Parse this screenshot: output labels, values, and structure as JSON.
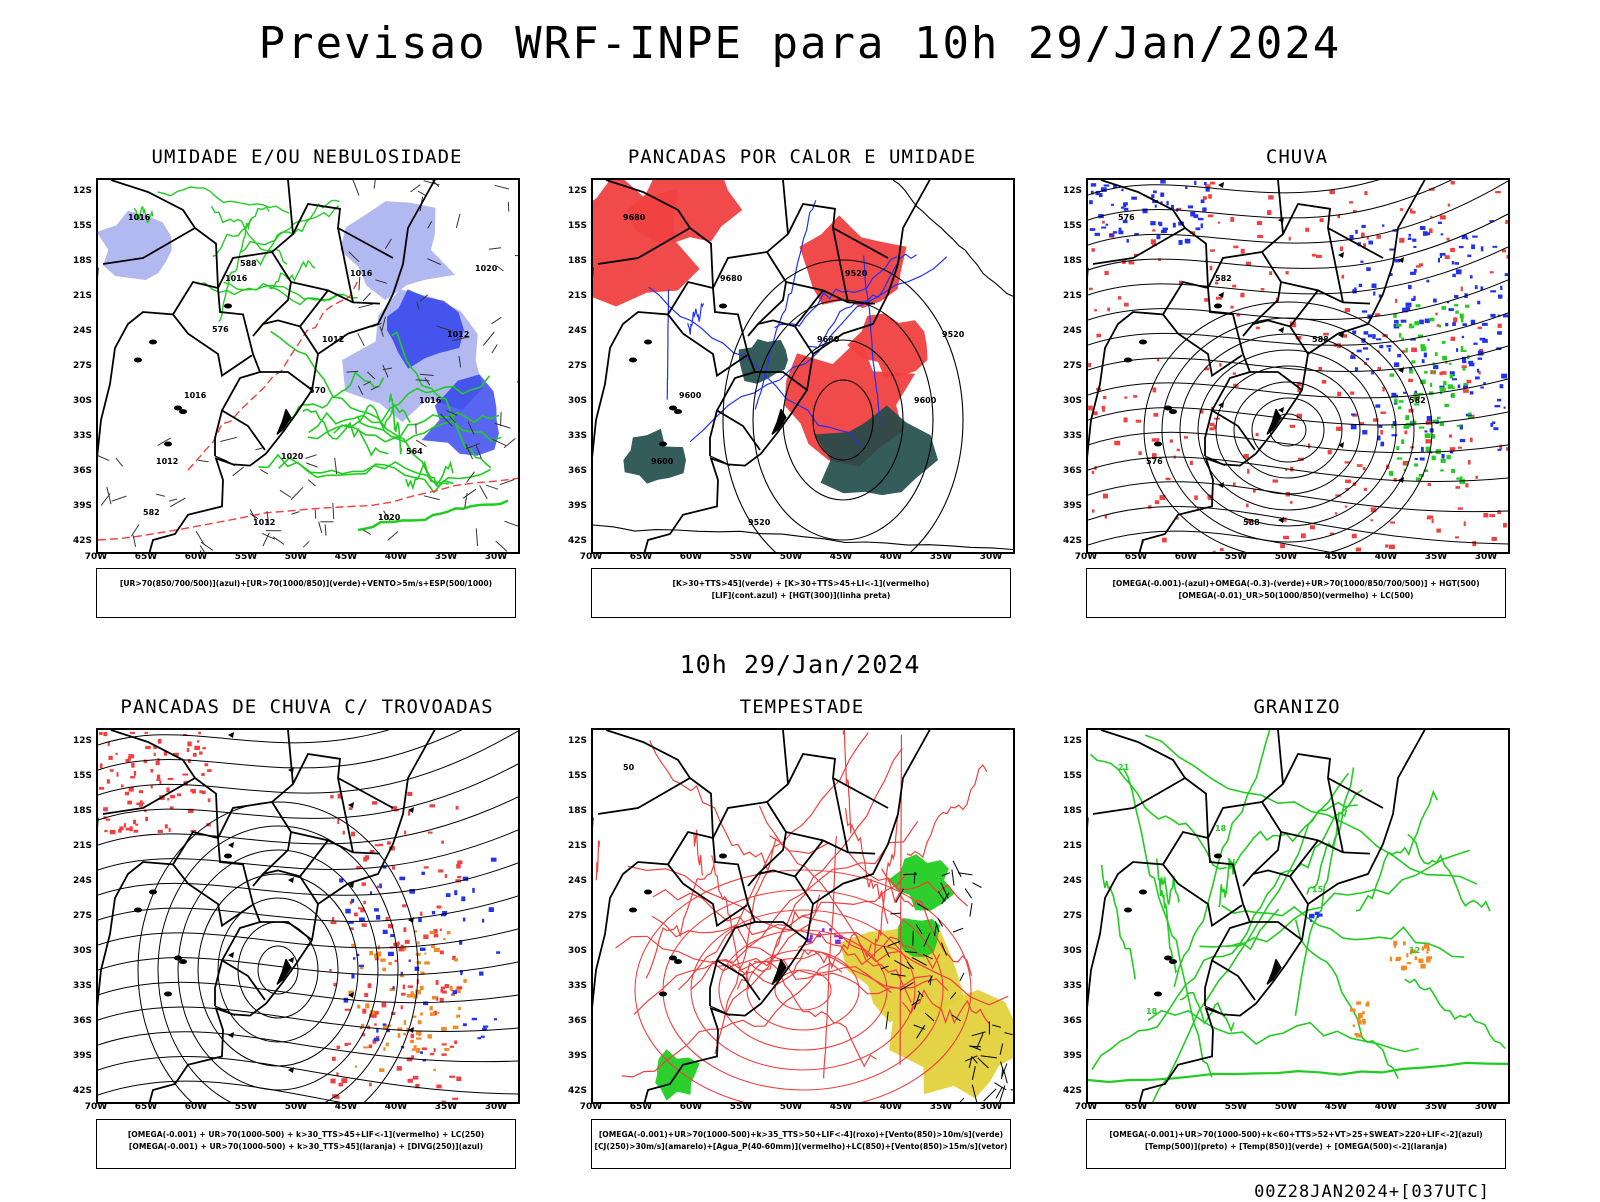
{
  "header": {
    "title": "Previsao WRF-INPE  para 10h 29/Jan/2024"
  },
  "middle": {
    "time": "10h 29/Jan/2024"
  },
  "footer": {
    "run_code": "00Z28JAN2024+[037UTC]"
  },
  "axes": {
    "lat_labels": [
      "12S",
      "15S",
      "18S",
      "21S",
      "24S",
      "27S",
      "30S",
      "33S",
      "36S",
      "39S",
      "42S"
    ],
    "lon_labels": [
      "70W",
      "65W",
      "60W",
      "55W",
      "50W",
      "45W",
      "40W",
      "35W",
      "30W"
    ]
  },
  "colors": {
    "red": "#f04040",
    "green": "#22cc22",
    "blue": "#2233ee",
    "lightblue": "#aab0ee",
    "darkteal": "#1e4a48",
    "yellow": "#e3d13a",
    "orange": "#f08a24"
  },
  "panels": [
    {
      "title": "UMIDADE E/OU NEBULOSIDADE",
      "legend": [
        "[UR>70(850/700/500)](azul)+[UR>70(1000/850)](verde)+VENTO>5m/s+ESP(500/1000)"
      ],
      "labels": [
        "1016",
        "1016",
        "1012",
        "1016",
        "1012",
        "1012",
        "1016",
        "1012",
        "1016",
        "1020",
        "1020",
        "1020",
        "576",
        "570",
        "564",
        "582",
        "588"
      ]
    },
    {
      "title": "PANCADAS POR CALOR E UMIDADE",
      "legend": [
        "[K>30+TTS>45](verde) + [K>30+TTS>45+LI<-1](vermelho)",
        "[LIF](cont.azul) + [HGT(300)](linha preta)"
      ],
      "labels": [
        "9680",
        "9680",
        "9680",
        "9600",
        "9600",
        "9520",
        "9520",
        "9520",
        "9600"
      ]
    },
    {
      "title": "CHUVA",
      "legend": [
        "[OMEGA(-0.001)-(azul)+OMEGA(-0.3)-(verde)+UR>70(1000/850/700/500)] + HGT(500)",
        "[OMEGA(-0.01)_UR>50(1000/850)(vermelho) + LC(500)"
      ],
      "labels": [
        "576",
        "582",
        "588",
        "582",
        "576",
        "588"
      ]
    },
    {
      "title": "PANCADAS DE CHUVA C/ TROVOADAS",
      "legend": [
        "[OMEGA(-0.001) + UR>70(1000-500) + k>30_TTS>45+LIF<-1](vermelho) + LC(250)",
        "[OMEGA(-0.001) + UR>70(1000-500) + k>30_TTS>45](laranja) + [DIVG(250)](azul)"
      ],
      "labels": []
    },
    {
      "title": "TEMPESTADE",
      "legend": [
        "[OMEGA(-0.001)+UR>70(1000-500)+k>35_TTS>50+LIF<-4](roxo)+[Vento(850)>10m/s](verde)",
        "[CJ(250)>30m/s](amarelo)+[Agua_P(40-60mm)](vermelho)+LC(850)+[Vento(850)>15m/s](vetor)"
      ],
      "labels": [
        "50"
      ]
    },
    {
      "title": "GRANIZO",
      "legend": [
        "[OMEGA(-0.001)+UR>70(1000-500)+k<60+TTS>52+VT>25+SWEAT>220+LIF<-2](azul)",
        "[Temp(500)](preto) + [Temp(850)](verde) + [OMEGA(500)<-2](laranja)"
      ],
      "labels": [
        "21",
        "18",
        "15",
        "12",
        "18"
      ]
    }
  ]
}
